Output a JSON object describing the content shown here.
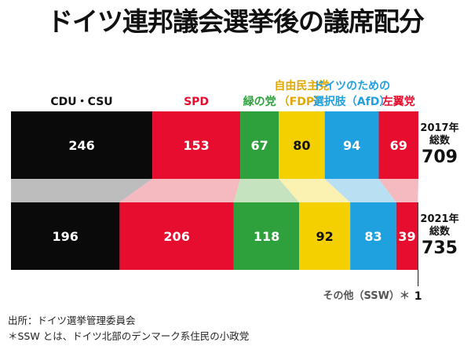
{
  "title": "ドイツ連邦議会選挙後の議席配分",
  "chart_data": {
    "type": "bar",
    "subtype": "stacked-horizontal-100",
    "categories": [
      "CDU・CSU",
      "SPD",
      "緑の党",
      "自由民主党（FDP）",
      "ドイツのための選択肢（AfD）",
      "左翼党",
      "その他（SSW）＊"
    ],
    "party_labels": [
      {
        "lines": [
          "CDU・CSU"
        ]
      },
      {
        "lines": [
          "SPD"
        ]
      },
      {
        "lines": [
          "緑の党"
        ]
      },
      {
        "lines": [
          "自由民主党",
          "（FDP）"
        ]
      },
      {
        "lines": [
          "ドイツのための",
          "選択肢（AfD）"
        ]
      },
      {
        "lines": [
          "左翼党"
        ]
      }
    ],
    "other_label": "その他（SSW）＊",
    "series": [
      {
        "year_label": "2017年",
        "total_label": "総数",
        "total": "709",
        "values": [
          246,
          153,
          67,
          80,
          94,
          69,
          0
        ]
      },
      {
        "year_label": "2021年",
        "total_label": "総数",
        "total": "735",
        "values": [
          196,
          206,
          118,
          92,
          83,
          39,
          1
        ]
      }
    ],
    "colors": [
      "#0a0a0a",
      "#e60d2e",
      "#2ea03c",
      "#f5d000",
      "#1fa1e0",
      "#e60d2e",
      "#222222"
    ],
    "connector_colors": [
      "#bdbdbd",
      "#f5b9c0",
      "#c5e3bf",
      "#fbf1b0",
      "#b9dff3",
      "#f5b9c0",
      "#dddddd"
    ],
    "value_text_colors": [
      "#ffffff",
      "#ffffff",
      "#ffffff",
      "#111111",
      "#ffffff",
      "#ffffff",
      "#111111"
    ],
    "label_colors": [
      "#111111",
      "#e60d2e",
      "#2ea03c",
      "#e0a800",
      "#1fa1e0",
      "#e60d2e"
    ]
  },
  "footnotes": {
    "source": "出所：ドイツ選挙管理委員会",
    "note": "＊SSW とは、ドイツ北部のデンマーク系住民の小政党"
  }
}
